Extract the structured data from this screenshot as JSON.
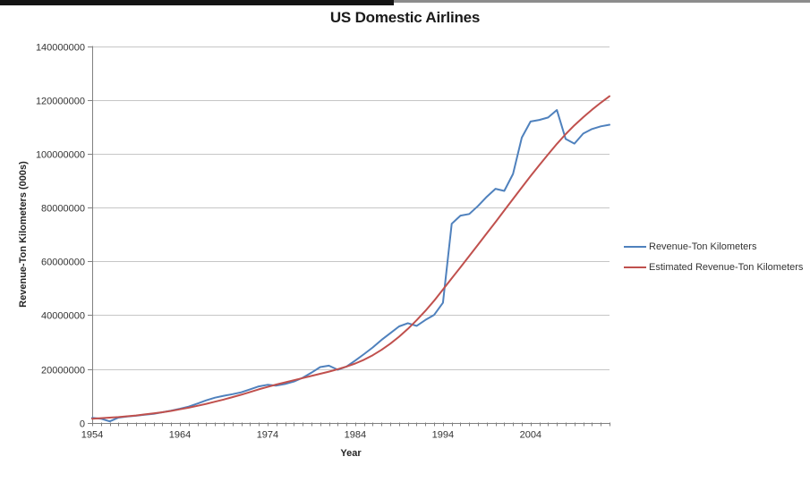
{
  "chart_title": "US Domestic Airlines",
  "axes": {
    "x_title": "Year",
    "y_title": "Revenue-Ton Kilometers (000s)",
    "y_ticks": [
      0,
      20000000,
      40000000,
      60000000,
      80000000,
      100000000,
      120000000,
      140000000
    ],
    "x_ticks": [
      1954,
      1964,
      1974,
      1984,
      1994,
      2004
    ]
  },
  "colors": {
    "actual_series": "#4F81BD",
    "estimated_series": "#C0504D",
    "gridline": "#c6c6c6",
    "axis": "#808080",
    "tick_text": "#333333"
  },
  "chart_data": {
    "type": "line",
    "title": "US Domestic Airlines",
    "xlabel": "Year",
    "ylabel": "Revenue-Ton Kilometers (000s)",
    "x_range": [
      1954,
      2013
    ],
    "ylim": [
      0,
      140000000
    ],
    "grid": "horizontal",
    "legend_position": "right",
    "x": [
      1954,
      1955,
      1956,
      1957,
      1958,
      1959,
      1960,
      1961,
      1962,
      1963,
      1964,
      1965,
      1966,
      1967,
      1968,
      1969,
      1970,
      1971,
      1972,
      1973,
      1974,
      1975,
      1976,
      1977,
      1978,
      1979,
      1980,
      1981,
      1982,
      1983,
      1984,
      1985,
      1986,
      1987,
      1988,
      1989,
      1990,
      1991,
      1992,
      1993,
      1994,
      1995,
      1996,
      1997,
      1998,
      1999,
      2000,
      2001,
      2002,
      2003,
      2004,
      2005,
      2006,
      2007,
      2008,
      2009,
      2010,
      2011,
      2012,
      2013
    ],
    "series": [
      {
        "name": "Revenue-Ton Kilometers",
        "color": "#4F81BD",
        "values": [
          1800000,
          1500000,
          500000,
          1900000,
          2300000,
          2600000,
          3000000,
          3300000,
          3900000,
          4500000,
          5200000,
          6000000,
          7100000,
          8300000,
          9300000,
          10000000,
          10600000,
          11300000,
          12400000,
          13500000,
          14100000,
          13800000,
          14400000,
          15300000,
          16700000,
          18600000,
          20700000,
          21200000,
          19700000,
          20900000,
          23100000,
          25500000,
          28000000,
          30800000,
          33300000,
          35800000,
          37000000,
          36000000,
          38200000,
          40100000,
          44600000,
          74000000,
          77000000,
          77600000,
          80600000,
          84000000,
          87000000,
          86200000,
          92500000,
          106000000,
          112000000,
          112600000,
          113500000,
          116300000,
          105500000,
          103800000,
          107500000,
          109200000,
          110200000,
          110800000
        ]
      },
      {
        "name": "Estimated Revenue-Ton Kilometers",
        "color": "#C0504D",
        "values": [
          1500000,
          1700000,
          1900000,
          2100000,
          2400000,
          2700000,
          3100000,
          3500000,
          3900000,
          4400000,
          5000000,
          5600000,
          6300000,
          7000000,
          7800000,
          8600000,
          9500000,
          10400000,
          11400000,
          12400000,
          13300000,
          14200000,
          15000000,
          15800000,
          16600000,
          17400000,
          18200000,
          19000000,
          19900000,
          20900000,
          22000000,
          23400000,
          25100000,
          27100000,
          29400000,
          32000000,
          34900000,
          38100000,
          41600000,
          45400000,
          49500000,
          53700000,
          57800000,
          62000000,
          66200000,
          70400000,
          74600000,
          78900000,
          83200000,
          87500000,
          91700000,
          95800000,
          99800000,
          103700000,
          107300000,
          110600000,
          113600000,
          116400000,
          119000000,
          121400000
        ]
      }
    ]
  }
}
